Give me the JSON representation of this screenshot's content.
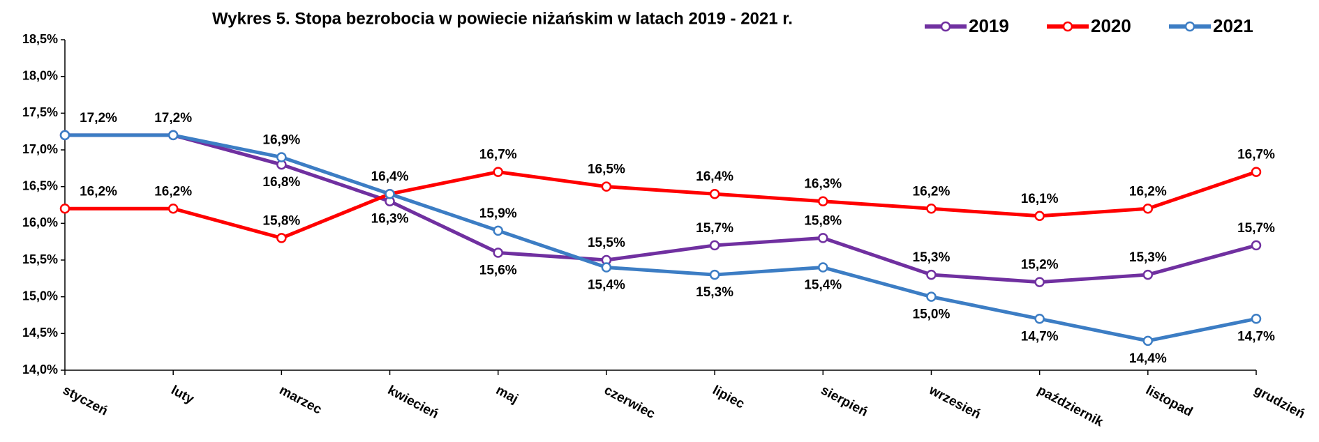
{
  "chart_data": {
    "type": "line",
    "title": "Wykres 5. Stopa bezrobocia w powiecie niżańskim w latach 2019 - 2021 r.",
    "categories": [
      "styczeń",
      "luty",
      "marzec",
      "kwiecień",
      "maj",
      "czerwiec",
      "lipiec",
      "sierpień",
      "wrzesień",
      "październik",
      "listopad",
      "grudzień"
    ],
    "series": [
      {
        "name": "2019",
        "color": "#7030a0",
        "values": [
          17.2,
          17.2,
          16.8,
          16.3,
          15.6,
          15.5,
          15.7,
          15.8,
          15.3,
          15.2,
          15.3,
          15.7
        ],
        "value_labels": [
          null,
          null,
          "16,8%",
          "16,3%",
          "15,6%",
          "15,5%",
          "15,7%",
          "15,8%",
          "15,3%",
          "15,2%",
          "15,3%",
          "15,7%"
        ]
      },
      {
        "name": "2020",
        "color": "#ff0000",
        "values": [
          16.2,
          16.2,
          15.8,
          16.4,
          16.7,
          16.5,
          16.4,
          16.3,
          16.2,
          16.1,
          16.2,
          16.7
        ],
        "value_labels": [
          "16,2%",
          "16,2%",
          "15,8%",
          "16,4%",
          "16,7%",
          "16,5%",
          "16,4%",
          "16,3%",
          "16,2%",
          "16,1%",
          "16,2%",
          "16,7%"
        ]
      },
      {
        "name": "2021",
        "color": "#3c7dc4",
        "values": [
          17.2,
          17.2,
          16.9,
          16.4,
          15.9,
          15.4,
          15.3,
          15.4,
          15.0,
          14.7,
          14.4,
          14.7
        ],
        "value_labels": [
          "17,2%",
          "17,2%",
          "16,9%",
          null,
          "15,9%",
          "15,4%",
          "15,3%",
          "15,4%",
          "15,0%",
          "14,7%",
          "14,4%",
          "14,7%"
        ]
      }
    ],
    "ylim": [
      14.0,
      18.5
    ],
    "yticks": [
      {
        "value": 14.0,
        "label": "14,0%"
      },
      {
        "value": 14.5,
        "label": "14,5%"
      },
      {
        "value": 15.0,
        "label": "15,0%"
      },
      {
        "value": 15.5,
        "label": "15,5%"
      },
      {
        "value": 16.0,
        "label": "16,0%"
      },
      {
        "value": 16.5,
        "label": "16,5%"
      },
      {
        "value": 17.0,
        "label": "17,0%"
      },
      {
        "value": 17.5,
        "label": "17,5%"
      },
      {
        "value": 18.0,
        "label": "18,0%"
      },
      {
        "value": 18.5,
        "label": "18,5%"
      }
    ],
    "grid": false,
    "legend": "top-right"
  }
}
